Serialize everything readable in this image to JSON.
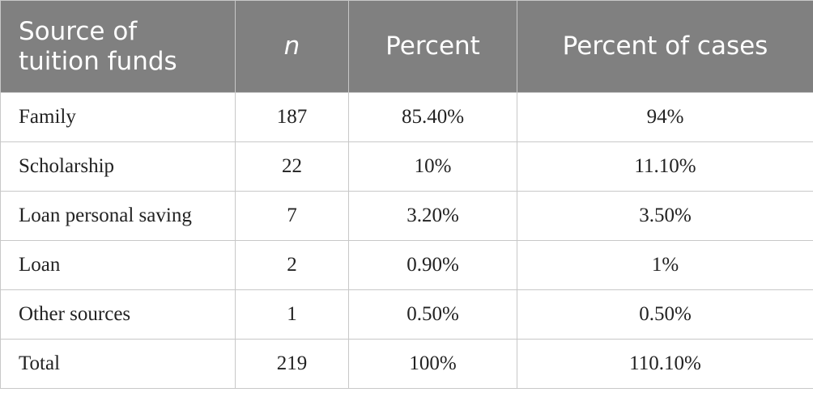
{
  "table": {
    "header": [
      "Source of tuition funds",
      "n",
      "Percent",
      "Percent of cases"
    ],
    "rows": [
      [
        "Family",
        187,
        "85.40%",
        "94%"
      ],
      [
        "Scholarship",
        22,
        "10%",
        "11.10%"
      ],
      [
        "Loan personal saving",
        7,
        "3.20%",
        "3.50%"
      ],
      [
        "Loan",
        2,
        "0.90%",
        "1%"
      ],
      [
        "Other sources",
        1,
        "0.50%",
        "0.50%"
      ],
      [
        "Total",
        219,
        "100%",
        "110.10%"
      ]
    ]
  }
}
